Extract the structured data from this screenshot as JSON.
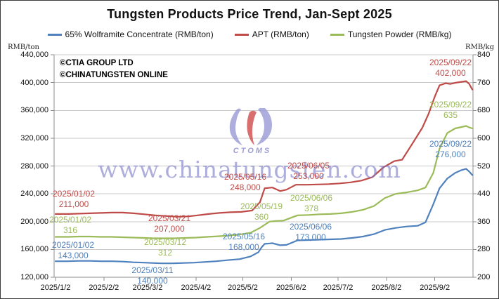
{
  "window": {
    "title": "Tungsten Products Price Trend, Jan-Sept 2025"
  },
  "copyright": {
    "line1": "©CTIA GROUP LTD",
    "line2": "©CHINATUNGSTEN ONLINE"
  },
  "watermark": {
    "url_text": "www.chinatungsten.com",
    "logo_caption": "CTOMS"
  },
  "units": {
    "left": "RMB/ton",
    "right": "RMB/kg"
  },
  "chart_data": {
    "type": "line",
    "title": "Tungsten Products Price Trend, Jan-Sept 2025",
    "grid": true,
    "legend_position": "top",
    "y_left": {
      "unit": "RMB/ton",
      "min": 120000,
      "max": 440000,
      "tick_labels": [
        "440,000",
        "400,000",
        "360,000",
        "320,000",
        "280,000",
        "240,000",
        "200,000",
        "160,000",
        "120,000"
      ]
    },
    "y_right": {
      "unit": "RMB/kg",
      "min": 200,
      "max": 840,
      "tick_labels": [
        "840",
        "760",
        "680",
        "600",
        "520",
        "440",
        "360",
        "280",
        "200"
      ]
    },
    "x_axis": {
      "tick_dates": [
        "2025/1/2",
        "2025/2/2",
        "2025/3/2",
        "2025/4/2",
        "2025/5/2",
        "2025/6/2",
        "2025/7/2",
        "2025/8/2",
        "2025/9/2"
      ],
      "range": [
        "2025/01/02",
        "2025/09/26"
      ]
    },
    "series": [
      {
        "id": "wolframite",
        "name": "65% Wolframite Concentrate (RMB/ton)",
        "color": "#4F81BD",
        "axis": "left",
        "dates": [
          "2025/01/02",
          "2025/01/10",
          "2025/01/17",
          "2025/01/24",
          "2025/01/31",
          "2025/02/07",
          "2025/02/14",
          "2025/02/21",
          "2025/02/28",
          "2025/03/05",
          "2025/03/11",
          "2025/03/18",
          "2025/03/25",
          "2025/04/01",
          "2025/04/08",
          "2025/04/15",
          "2025/04/22",
          "2025/04/30",
          "2025/05/07",
          "2025/05/12",
          "2025/05/14",
          "2025/05/16",
          "2025/05/21",
          "2025/05/26",
          "2025/05/30",
          "2025/06/06",
          "2025/06/13",
          "2025/06/20",
          "2025/06/27",
          "2025/07/04",
          "2025/07/11",
          "2025/07/18",
          "2025/07/25",
          "2025/08/01",
          "2025/08/08",
          "2025/08/15",
          "2025/08/22",
          "2025/08/27",
          "2025/09/01",
          "2025/09/05",
          "2025/09/10",
          "2025/09/15",
          "2025/09/19",
          "2025/09/22",
          "2025/09/24",
          "2025/09/26"
        ],
        "values": [
          143000,
          143000,
          143500,
          143500,
          143000,
          143000,
          142500,
          141500,
          141000,
          140500,
          140000,
          140000,
          140500,
          141000,
          142000,
          143000,
          144500,
          146000,
          150000,
          156000,
          163000,
          168000,
          169000,
          166000,
          166500,
          173000,
          173500,
          174000,
          174500,
          175000,
          176500,
          178500,
          182000,
          188000,
          191000,
          193000,
          194000,
          199000,
          225000,
          248000,
          262000,
          270000,
          274000,
          276000,
          272000,
          267000
        ]
      },
      {
        "id": "apt",
        "name": "APT (RMB/ton)",
        "color": "#BE4B48",
        "axis": "left",
        "dates": [
          "2025/01/02",
          "2025/01/10",
          "2025/01/17",
          "2025/01/24",
          "2025/01/31",
          "2025/02/07",
          "2025/02/14",
          "2025/02/21",
          "2025/02/28",
          "2025/03/07",
          "2025/03/14",
          "2025/03/21",
          "2025/03/28",
          "2025/04/03",
          "2025/04/10",
          "2025/04/17",
          "2025/04/24",
          "2025/05/01",
          "2025/05/08",
          "2025/05/13",
          "2025/05/16",
          "2025/05/21",
          "2025/05/26",
          "2025/05/30",
          "2025/06/05",
          "2025/06/12",
          "2025/06/19",
          "2025/06/26",
          "2025/07/03",
          "2025/07/10",
          "2025/07/17",
          "2025/07/24",
          "2025/07/31",
          "2025/08/07",
          "2025/08/12",
          "2025/08/18",
          "2025/08/25",
          "2025/08/29",
          "2025/09/02",
          "2025/09/05",
          "2025/09/09",
          "2025/09/12",
          "2025/09/16",
          "2025/09/19",
          "2025/09/22",
          "2025/09/24",
          "2025/09/26"
        ],
        "values": [
          211000,
          211000,
          211500,
          212000,
          212500,
          213000,
          213000,
          212000,
          210500,
          209000,
          208000,
          207000,
          207500,
          209000,
          211000,
          212500,
          213500,
          214000,
          216000,
          228000,
          248000,
          249000,
          244000,
          246000,
          253000,
          253000,
          253500,
          254000,
          255000,
          256500,
          259000,
          264000,
          278000,
          287000,
          289000,
          310000,
          335000,
          355000,
          380000,
          396000,
          399000,
          398000,
          400000,
          401000,
          402000,
          398000,
          390000
        ]
      },
      {
        "id": "powder",
        "name": "Tungsten Powder (RMB/kg)",
        "color": "#9BBB59",
        "axis": "right",
        "dates": [
          "2025/01/02",
          "2025/01/10",
          "2025/01/17",
          "2025/01/24",
          "2025/01/31",
          "2025/02/07",
          "2025/02/14",
          "2025/02/21",
          "2025/02/28",
          "2025/03/06",
          "2025/03/12",
          "2025/03/19",
          "2025/03/26",
          "2025/04/02",
          "2025/04/09",
          "2025/04/16",
          "2025/04/23",
          "2025/04/30",
          "2025/05/07",
          "2025/05/13",
          "2025/05/19",
          "2025/05/23",
          "2025/05/28",
          "2025/06/06",
          "2025/06/13",
          "2025/06/20",
          "2025/06/27",
          "2025/07/04",
          "2025/07/11",
          "2025/07/18",
          "2025/07/25",
          "2025/08/01",
          "2025/08/08",
          "2025/08/15",
          "2025/08/22",
          "2025/08/27",
          "2025/09/01",
          "2025/09/05",
          "2025/09/10",
          "2025/09/15",
          "2025/09/19",
          "2025/09/22",
          "2025/09/24",
          "2025/09/26"
        ],
        "values": [
          316,
          316,
          317,
          317,
          316,
          316,
          315,
          314,
          313,
          312,
          312,
          312,
          313,
          314,
          316,
          318,
          320,
          323,
          328,
          342,
          360,
          362,
          363,
          378,
          379,
          381,
          382,
          384,
          388,
          394,
          405,
          428,
          440,
          444,
          450,
          458,
          500,
          570,
          615,
          628,
          632,
          635,
          631,
          628
        ]
      }
    ],
    "annotations": [
      {
        "series": "apt",
        "date": "2025/01/02",
        "value": "211,000",
        "x": 104,
        "y": 268
      },
      {
        "series": "powder",
        "date": "2025/01/02",
        "value": "316",
        "x": 99,
        "y": 305
      },
      {
        "series": "wolframite",
        "date": "2025/01/02",
        "value": "143,000",
        "x": 103,
        "y": 341
      },
      {
        "series": "apt",
        "date": "2025/03/21",
        "value": "207,000",
        "x": 240,
        "y": 303
      },
      {
        "series": "powder",
        "date": "2025/03/12",
        "value": "312",
        "x": 234,
        "y": 337
      },
      {
        "series": "wolframite",
        "date": "2025/03/11",
        "value": "140,000",
        "x": 216,
        "y": 377
      },
      {
        "series": "apt",
        "date": "2025/05/16",
        "value": "248,000",
        "x": 348,
        "y": 244
      },
      {
        "series": "powder",
        "date": "2025/05/19",
        "value": "360",
        "x": 371,
        "y": 286
      },
      {
        "series": "wolframite",
        "date": "2025/05/16",
        "value": "168,000",
        "x": 346,
        "y": 329
      },
      {
        "series": "apt",
        "date": "2025/06/05",
        "value": "253,000",
        "x": 438,
        "y": 228
      },
      {
        "series": "powder",
        "date": "2025/06/06",
        "value": "378",
        "x": 442,
        "y": 274
      },
      {
        "series": "wolframite",
        "date": "2025/06/06",
        "value": "173,000",
        "x": 441,
        "y": 315
      },
      {
        "series": "apt",
        "date": "2025/09/22",
        "value": "402,000",
        "x": 640,
        "y": 81
      },
      {
        "series": "powder",
        "date": "2025/09/22",
        "value": "635",
        "x": 640,
        "y": 141
      },
      {
        "series": "wolframite",
        "date": "2025/09/22",
        "value": "276,000",
        "x": 640,
        "y": 197
      }
    ],
    "colors": {
      "grid": "#c9c9c9",
      "axis": "#8c8c8c",
      "watermark": "#8282c8"
    }
  }
}
